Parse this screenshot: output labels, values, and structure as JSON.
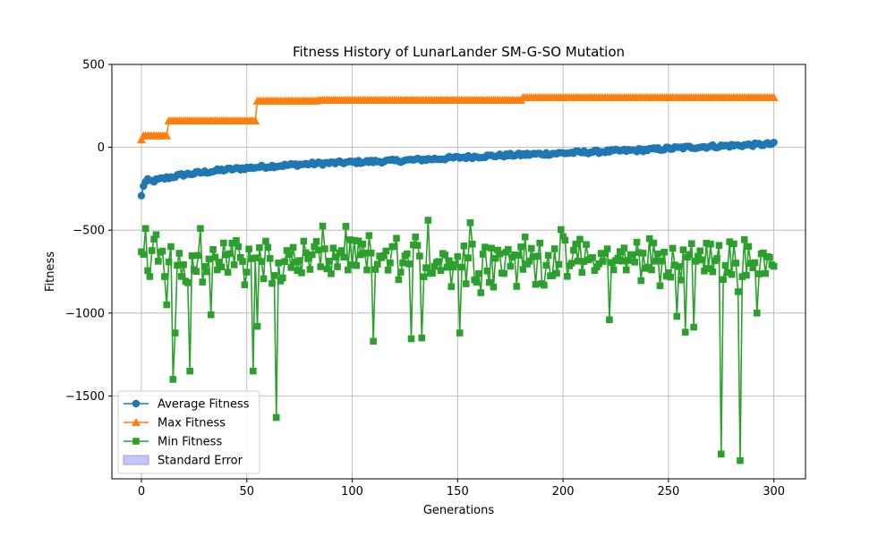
{
  "chart_data": {
    "type": "line",
    "title": "Fitness History of LunarLander SM-G-SO Mutation",
    "xlabel": "Generations",
    "ylabel": "Fitness",
    "xlim": [
      -14,
      315
    ],
    "ylim": [
      -2000,
      500
    ],
    "xticks": [
      0,
      50,
      100,
      150,
      200,
      250,
      300
    ],
    "yticks": [
      -1500,
      -1000,
      -500,
      0,
      500
    ],
    "ytick_labels": [
      "−1500",
      "−1000",
      "−500",
      "0",
      "500"
    ],
    "grid": true,
    "legend_position": "lower-left",
    "legend": [
      "Average Fitness",
      "Max Fitness",
      "Min Fitness",
      "Standard Error"
    ],
    "standard_error_color": "#c6c6f8",
    "series": [
      {
        "name": "Average Fitness",
        "color": "#1f77b4",
        "marker": "circle",
        "knots": [
          [
            0,
            -295
          ],
          [
            1,
            -230
          ],
          [
            2,
            -210
          ],
          [
            3,
            -200
          ],
          [
            5,
            -205
          ],
          [
            10,
            -190
          ],
          [
            20,
            -165
          ],
          [
            40,
            -135
          ],
          [
            60,
            -115
          ],
          [
            80,
            -100
          ],
          [
            100,
            -90
          ],
          [
            120,
            -82
          ],
          [
            140,
            -70
          ],
          [
            160,
            -55
          ],
          [
            180,
            -45
          ],
          [
            200,
            -35
          ],
          [
            220,
            -25
          ],
          [
            240,
            -15
          ],
          [
            260,
            0
          ],
          [
            280,
            10
          ],
          [
            300,
            20
          ]
        ],
        "noise": 10
      },
      {
        "name": "Max Fitness",
        "color": "#ff7f0e",
        "marker": "triangle",
        "knots": [
          [
            0,
            45
          ],
          [
            1,
            70
          ],
          [
            12,
            70
          ],
          [
            13,
            160
          ],
          [
            54,
            160
          ],
          [
            55,
            280
          ],
          [
            83,
            280
          ],
          [
            84,
            285
          ],
          [
            180,
            285
          ],
          [
            181,
            300
          ],
          [
            300,
            300
          ]
        ],
        "noise": 0
      },
      {
        "name": "Min Fitness",
        "color": "#2ca02c",
        "marker": "square",
        "baseline": -680,
        "spread": 170,
        "dips": [
          [
            12,
            -950
          ],
          [
            15,
            -1400
          ],
          [
            16,
            -1120
          ],
          [
            23,
            -1350
          ],
          [
            33,
            -1010
          ],
          [
            53,
            -1350
          ],
          [
            55,
            -1080
          ],
          [
            64,
            -1630
          ],
          [
            110,
            -1170
          ],
          [
            128,
            -1155
          ],
          [
            133,
            -1150
          ],
          [
            151,
            -1120
          ],
          [
            156,
            -1290
          ],
          [
            222,
            -1040
          ],
          [
            254,
            -1020
          ],
          [
            258,
            -1115
          ],
          [
            262,
            -1085
          ],
          [
            275,
            -1850
          ],
          [
            284,
            -1890
          ],
          [
            292,
            -1000
          ]
        ],
        "peaks": [
          [
            2,
            -490
          ],
          [
            28,
            -490
          ],
          [
            86,
            -475
          ],
          [
            136,
            -440
          ],
          [
            156,
            -455
          ]
        ]
      }
    ]
  }
}
